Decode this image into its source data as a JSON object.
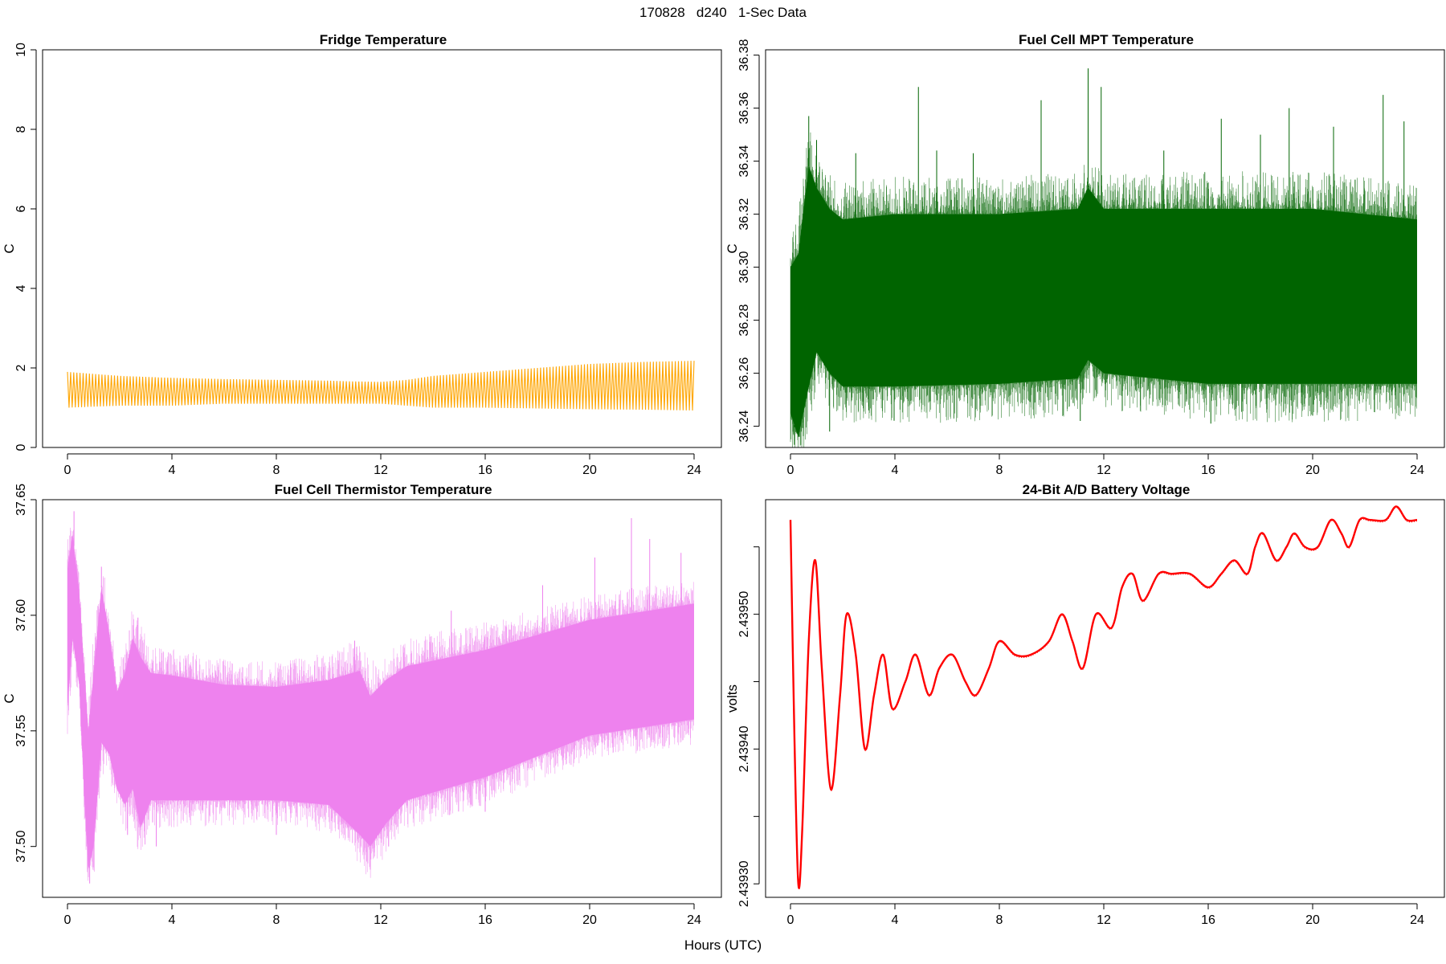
{
  "page_title": "170828   d240   1-Sec Data",
  "x_axis_label": "Hours (UTC)",
  "chart_data": [
    {
      "type": "line",
      "title": "Fridge Temperature",
      "xlabel": "Hours (UTC)",
      "ylabel": "C",
      "xlim": [
        0,
        24
      ],
      "ylim": [
        0,
        10
      ],
      "x_ticks": [
        0,
        4,
        8,
        12,
        16,
        20,
        24
      ],
      "y_ticks": [
        0,
        2,
        4,
        6,
        8,
        10
      ],
      "y_tick_labels": [
        "0",
        "2",
        "4",
        "6",
        "8",
        "10"
      ],
      "color": "#FFA500",
      "style": "oscillating-band",
      "series": {
        "name": "Fridge Temperature",
        "hours": [
          0,
          2,
          4,
          6,
          8,
          10,
          11,
          12,
          13,
          14,
          16,
          18,
          20,
          22,
          24
        ],
        "min": [
          1.0,
          1.05,
          1.05,
          1.1,
          1.1,
          1.1,
          1.1,
          1.1,
          1.05,
          1.0,
          1.0,
          0.98,
          0.96,
          0.95,
          0.93
        ],
        "max": [
          1.9,
          1.8,
          1.75,
          1.72,
          1.7,
          1.68,
          1.66,
          1.65,
          1.7,
          1.8,
          1.9,
          2.0,
          2.1,
          2.15,
          2.18
        ]
      }
    },
    {
      "type": "line",
      "title": "Fuel Cell MPT Temperature",
      "xlabel": "Hours (UTC)",
      "ylabel": "C",
      "xlim": [
        0,
        24
      ],
      "ylim": [
        36.232,
        36.382
      ],
      "x_ticks": [
        0,
        4,
        8,
        12,
        16,
        20,
        24
      ],
      "y_ticks": [
        36.24,
        36.26,
        36.28,
        36.3,
        36.32,
        36.34,
        36.36,
        36.38
      ],
      "y_tick_labels": [
        "36.24",
        "36.26",
        "36.28",
        "36.30",
        "36.32",
        "36.34",
        "36.36",
        "36.38"
      ],
      "color": "#006400",
      "style": "noisy-band",
      "series": {
        "name": "Fuel Cell MPT Temperature",
        "hours": [
          0,
          0.3,
          0.7,
          1.0,
          1.5,
          2,
          4,
          8,
          11,
          11.4,
          12,
          16,
          20,
          24
        ],
        "min": [
          36.245,
          36.236,
          36.255,
          36.268,
          36.26,
          36.255,
          36.255,
          36.256,
          36.258,
          36.265,
          36.26,
          36.256,
          36.256,
          36.256
        ],
        "max": [
          36.3,
          36.305,
          36.338,
          36.33,
          36.322,
          36.318,
          36.32,
          36.32,
          36.322,
          36.33,
          36.322,
          36.322,
          36.322,
          36.318
        ],
        "spikes": [
          {
            "hour": 0.7,
            "value": 36.357
          },
          {
            "hour": 1.0,
            "value": 36.348
          },
          {
            "hour": 2.5,
            "value": 36.343
          },
          {
            "hour": 4.9,
            "value": 36.368
          },
          {
            "hour": 5.6,
            "value": 36.344
          },
          {
            "hour": 7.0,
            "value": 36.343
          },
          {
            "hour": 9.6,
            "value": 36.363
          },
          {
            "hour": 11.4,
            "value": 36.375
          },
          {
            "hour": 11.9,
            "value": 36.368
          },
          {
            "hour": 14.3,
            "value": 36.344
          },
          {
            "hour": 16.5,
            "value": 36.356
          },
          {
            "hour": 18.0,
            "value": 36.35
          },
          {
            "hour": 19.1,
            "value": 36.36
          },
          {
            "hour": 20.8,
            "value": 36.353
          },
          {
            "hour": 22.7,
            "value": 36.365
          },
          {
            "hour": 23.5,
            "value": 36.355
          }
        ],
        "dips": [
          {
            "hour": 0.15,
            "value": 36.233
          },
          {
            "hour": 1.5,
            "value": 36.238
          },
          {
            "hour": 3.0,
            "value": 36.246
          },
          {
            "hour": 11.1,
            "value": 36.242
          },
          {
            "hour": 16.1,
            "value": 36.241
          },
          {
            "hour": 20.0,
            "value": 36.244
          }
        ]
      }
    },
    {
      "type": "line",
      "title": "Fuel Cell Thermistor Temperature",
      "xlabel": "Hours (UTC)",
      "ylabel": "C",
      "xlim": [
        0,
        24
      ],
      "ylim": [
        37.478,
        37.65
      ],
      "x_ticks": [
        0,
        4,
        8,
        12,
        16,
        20,
        24
      ],
      "y_ticks": [
        37.5,
        37.55,
        37.6,
        37.65
      ],
      "y_tick_labels": [
        "37.50",
        "37.55",
        "37.60",
        "37.65"
      ],
      "color": "#EE82EE",
      "style": "noisy-band",
      "series": {
        "name": "Fuel Cell Thermistor Temperature",
        "hours": [
          0,
          0.2,
          0.45,
          0.65,
          0.8,
          1.0,
          1.3,
          1.6,
          1.9,
          2.2,
          2.5,
          2.8,
          3.2,
          4,
          6,
          8,
          10,
          11.2,
          11.6,
          12.2,
          13,
          16,
          20,
          24
        ],
        "min": [
          37.56,
          37.59,
          37.57,
          37.52,
          37.49,
          37.5,
          37.545,
          37.54,
          37.525,
          37.518,
          37.525,
          37.508,
          37.52,
          37.52,
          37.52,
          37.52,
          37.518,
          37.505,
          37.5,
          37.51,
          37.52,
          37.53,
          37.548,
          37.555
        ],
        "max": [
          37.62,
          37.635,
          37.61,
          37.575,
          37.55,
          37.575,
          37.612,
          37.592,
          37.567,
          37.575,
          37.59,
          37.582,
          37.575,
          37.574,
          37.57,
          37.569,
          37.572,
          37.576,
          37.565,
          37.572,
          37.578,
          37.585,
          37.598,
          37.605
        ],
        "spikes": [
          {
            "hour": 0.25,
            "value": 37.645
          },
          {
            "hour": 1.3,
            "value": 37.621
          },
          {
            "hour": 2.7,
            "value": 37.599
          },
          {
            "hour": 11.0,
            "value": 37.589
          },
          {
            "hour": 14.7,
            "value": 37.602
          },
          {
            "hour": 18.2,
            "value": 37.613
          },
          {
            "hour": 20.2,
            "value": 37.625
          },
          {
            "hour": 21.6,
            "value": 37.642
          },
          {
            "hour": 22.3,
            "value": 37.633
          },
          {
            "hour": 23.5,
            "value": 37.627
          }
        ],
        "dips": [
          {
            "hour": 0.85,
            "value": 37.484
          },
          {
            "hour": 2.3,
            "value": 37.505
          },
          {
            "hour": 3.4,
            "value": 37.5
          },
          {
            "hour": 8.0,
            "value": 37.505
          },
          {
            "hour": 11.6,
            "value": 37.49
          },
          {
            "hour": 12.3,
            "value": 37.5
          },
          {
            "hour": 16.0,
            "value": 37.515
          }
        ]
      }
    },
    {
      "type": "line",
      "title": "24-Bit A/D Battery Voltage",
      "xlabel": "Hours (UTC)",
      "ylabel": "volts",
      "xlim": [
        0,
        24
      ],
      "ylim": [
        2.43929,
        2.439585
      ],
      "x_ticks": [
        0,
        4,
        8,
        12,
        16,
        20,
        24
      ],
      "y_ticks": [
        2.4393,
        2.43935,
        2.4394,
        2.43945,
        2.4395,
        2.43955
      ],
      "y_tick_labels": [
        "2.43930",
        "",
        "2.43940",
        "",
        "2.43950",
        ""
      ],
      "color": "#FF0000",
      "style": "line",
      "series": {
        "name": "Battery Voltage",
        "x": [
          0.0,
          0.15,
          0.3,
          0.45,
          0.7,
          0.95,
          1.2,
          1.55,
          1.9,
          2.15,
          2.5,
          2.85,
          3.2,
          3.55,
          3.9,
          4.4,
          4.8,
          5.3,
          5.7,
          6.2,
          6.7,
          7.1,
          7.6,
          8.0,
          8.6,
          9.2,
          9.9,
          10.4,
          10.8,
          11.2,
          11.7,
          12.3,
          12.7,
          13.1,
          13.5,
          14.1,
          14.6,
          15.3,
          16.0,
          16.5,
          17.0,
          17.5,
          17.8,
          18.1,
          18.6,
          19.0,
          19.3,
          19.7,
          20.2,
          20.7,
          21.1,
          21.4,
          21.8,
          22.2,
          22.8,
          23.2,
          23.6,
          24.0
        ],
        "values": [
          2.43957,
          2.43941,
          2.4393,
          2.43934,
          2.43948,
          2.43954,
          2.43946,
          2.43937,
          2.43944,
          2.4395,
          2.43947,
          2.4394,
          2.43944,
          2.43947,
          2.43943,
          2.43945,
          2.43947,
          2.43944,
          2.43946,
          2.43947,
          2.43945,
          2.43944,
          2.43946,
          2.43948,
          2.43947,
          2.43947,
          2.43948,
          2.4395,
          2.43948,
          2.43946,
          2.4395,
          2.43949,
          2.43952,
          2.43953,
          2.43951,
          2.43953,
          2.43953,
          2.43953,
          2.43952,
          2.43953,
          2.43954,
          2.43953,
          2.43955,
          2.43956,
          2.43954,
          2.43955,
          2.43956,
          2.43955,
          2.43955,
          2.43957,
          2.43956,
          2.43955,
          2.43957,
          2.43957,
          2.43957,
          2.43958,
          2.43957,
          2.43957
        ]
      }
    }
  ]
}
